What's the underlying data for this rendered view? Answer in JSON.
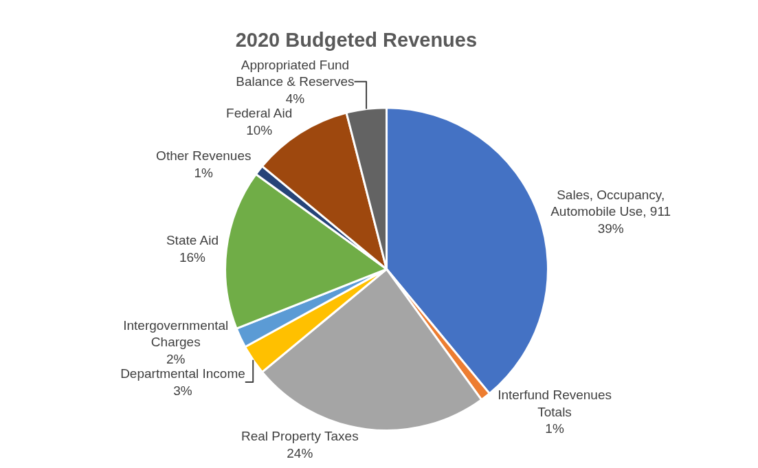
{
  "chart_data": {
    "type": "pie",
    "title": "2020 Budgeted Revenues",
    "categories": [
      "Sales, Occupancy, Automobile Use, 911",
      "Interfund Revenues Totals",
      "Real Property Taxes",
      "Departmental Income",
      "Intergovernmental Charges",
      "State Aid",
      "Other Revenues",
      "Federal Aid",
      "Appropriated Fund Balance & Reserves"
    ],
    "values": [
      39,
      1,
      24,
      3,
      2,
      16,
      1,
      10,
      4
    ],
    "value_labels": [
      "39%",
      "1%",
      "24%",
      "3%",
      "2%",
      "16%",
      "1%",
      "10%",
      "4%"
    ],
    "colors": [
      "#4472c4",
      "#ed7d31",
      "#a5a5a5",
      "#ffc000",
      "#5b9bd5",
      "#70ad47",
      "#264478",
      "#9e480e",
      "#636363"
    ],
    "legend": false
  }
}
